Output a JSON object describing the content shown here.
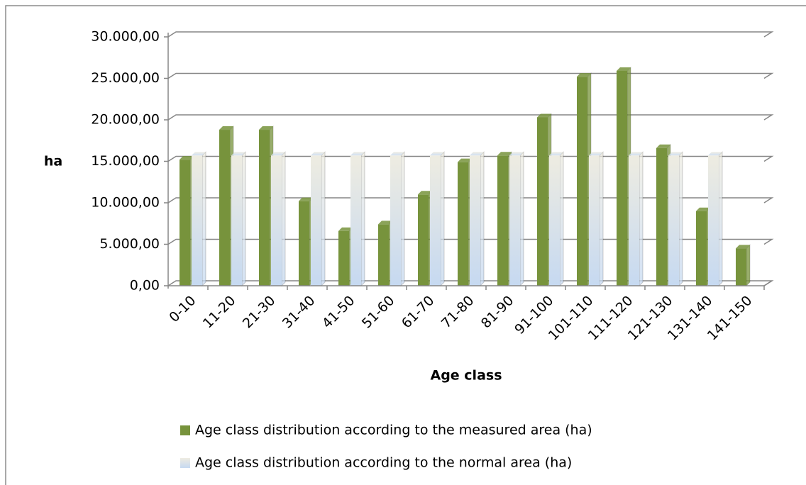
{
  "chart_data": {
    "type": "bar",
    "y_label": "ha",
    "x_label": "Age class",
    "categories": [
      "0-10",
      "11-20",
      "21-30",
      "31-40",
      "41-50",
      "51-60",
      "61-70",
      "71-80",
      "81-90",
      "91-100",
      "101-110",
      "111-120",
      "121-130",
      "131-140",
      "141-150"
    ],
    "series": [
      {
        "name": "Age class distribution according to the measured area (ha)",
        "color": "#77933c",
        "values": [
          15200,
          18800,
          18800,
          10200,
          6600,
          7400,
          11000,
          14900,
          15700,
          20300,
          25200,
          25900,
          16600,
          9000,
          4500
        ]
      },
      {
        "name": "Age class distribution according to the normal area (ha)",
        "color": "#c6d9f1",
        "values": [
          15700,
          15700,
          15700,
          15700,
          15700,
          15700,
          15700,
          15700,
          15700,
          15700,
          15700,
          15700,
          15700,
          15700,
          null
        ]
      }
    ],
    "ylim": [
      0,
      30000
    ],
    "yticks": [
      {
        "value": 0,
        "label": "0,00"
      },
      {
        "value": 5000,
        "label": "5.000,00"
      },
      {
        "value": 10000,
        "label": "10.000,00"
      },
      {
        "value": 15000,
        "label": "15.000,00"
      },
      {
        "value": 20000,
        "label": "20.000,00"
      },
      {
        "value": 25000,
        "label": "25.000,00"
      },
      {
        "value": 30000,
        "label": "30.000,00"
      }
    ],
    "grid": true
  }
}
